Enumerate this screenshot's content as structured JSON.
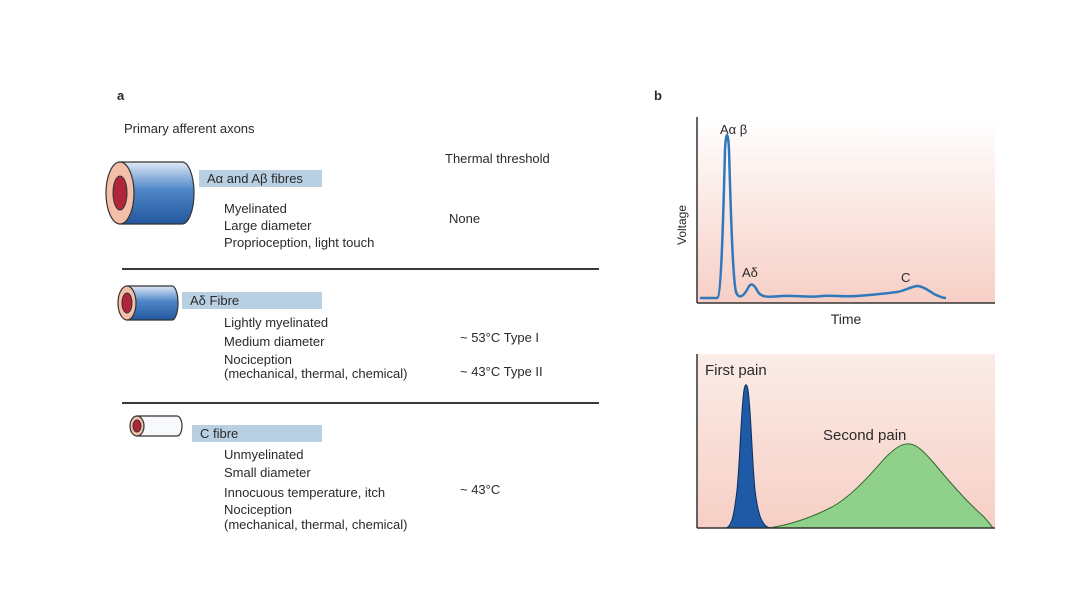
{
  "panel_a": {
    "letter": "a",
    "heading": "Primary afferent axons",
    "threshold_heading": "Thermal threshold",
    "fibres": [
      {
        "label": "Aα and Aβ fibres",
        "properties": [
          "Myelinated",
          "Large diameter",
          "Proprioception, light touch"
        ],
        "thresholds": [
          "None"
        ]
      },
      {
        "label": "Aδ Fibre",
        "properties": [
          "Lightly myelinated",
          "Medium diameter",
          "Nociception",
          "(mechanical, thermal, chemical)"
        ],
        "thresholds": [
          "~ 53°C Type I",
          "~ 43°C Type II"
        ]
      },
      {
        "label": "C fibre",
        "properties": [
          "Unmyelinated",
          "Small diameter",
          "Innocuous temperature, itch",
          "Nociception",
          "(mechanical, thermal, chemical)"
        ],
        "thresholds": [
          "~ 43°C"
        ]
      }
    ],
    "colors": {
      "myelin": "#2f66ad",
      "core_ring": "#f4bfa8",
      "core": "#b1253b",
      "label_band": "#b9d0e3",
      "separator": "#3a3a3a"
    }
  },
  "panel_b": {
    "letter": "b",
    "top_plot": {
      "ylabel": "Voltage",
      "xlabel": "Time",
      "peak_labels": [
        "Aα β",
        "Aδ",
        "C"
      ],
      "colors": {
        "trace": "#2f78bd",
        "background_top": "#fbf0ec",
        "background_bottom": "#f6cfc5"
      }
    },
    "bottom_plot": {
      "first_label": "First pain",
      "second_label": "Second pain",
      "colors": {
        "first": "#1f5aa6",
        "second": "#8fd08a",
        "background": "#f6cfc5"
      }
    }
  }
}
